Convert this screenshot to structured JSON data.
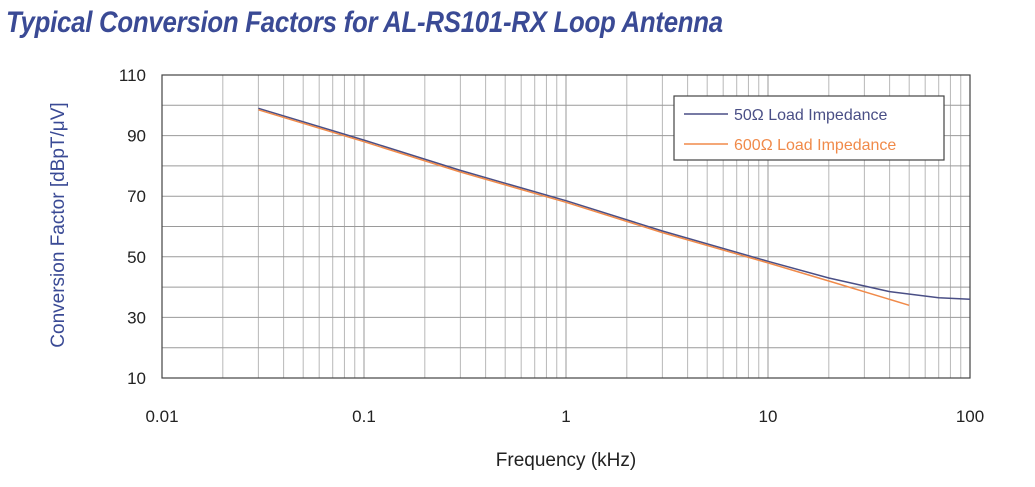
{
  "chart_data": {
    "type": "line",
    "title": "Typical Conversion Factors for AL-RS101-RX Loop Antenna",
    "xlabel": "Frequency (kHz)",
    "ylabel": "Conversion Factor [dBpT/μV]",
    "xscale": "log",
    "xlim": [
      0.01,
      100
    ],
    "ylim": [
      10,
      110
    ],
    "xticks": [
      0.01,
      0.1,
      1,
      10,
      100
    ],
    "xtick_labels": [
      "0.01",
      "0.1",
      "1",
      "10",
      "100"
    ],
    "yticks": [
      10,
      30,
      50,
      70,
      90,
      110
    ],
    "ytick_labels": [
      "10",
      "30",
      "50",
      "70",
      "90",
      "110"
    ],
    "grid": true,
    "legend_position": "top-right",
    "series": [
      {
        "name": "50Ω Load Impedance",
        "color": "#4a4f86",
        "x": [
          0.03,
          0.1,
          0.3,
          1,
          3,
          10,
          20,
          40,
          70,
          100
        ],
        "y": [
          99,
          88.5,
          78.5,
          68.5,
          58.5,
          48.5,
          43,
          38.5,
          36.5,
          36
        ]
      },
      {
        "name": "600Ω Load Impedance",
        "color": "#f08a4a",
        "x": [
          0.03,
          0.1,
          0.3,
          1,
          3,
          10,
          20,
          50
        ],
        "y": [
          98.5,
          88,
          78,
          68,
          58,
          48,
          42,
          34
        ]
      }
    ]
  }
}
